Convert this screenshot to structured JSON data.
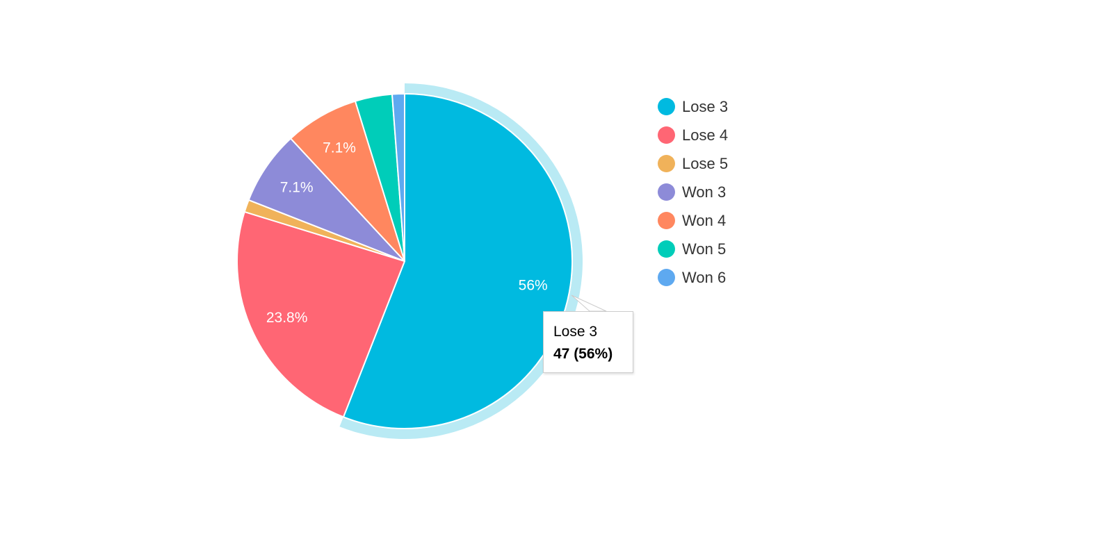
{
  "chart_data": {
    "type": "pie",
    "categories": [
      "Lose 3",
      "Lose 4",
      "Lose 5",
      "Won 3",
      "Won 4",
      "Won 5",
      "Won 6"
    ],
    "values": [
      47,
      20,
      1,
      6,
      6,
      3,
      1
    ],
    "colors": [
      "#00bae0",
      "#ff6674",
      "#f0b25a",
      "#8d8bd8",
      "#ff875f",
      "#00cdb9",
      "#5ea9f0"
    ],
    "slice_labels": [
      "56%",
      "23.8%",
      "",
      "7.1%",
      "7.1%",
      "",
      ""
    ],
    "legend": {
      "placement": "right",
      "entries": [
        "Lose 3",
        "Lose 4",
        "Lose 5",
        "Won 3",
        "Won 4",
        "Won 5",
        "Won 6"
      ]
    },
    "highlighted": "Lose 3",
    "highlight_color": "#b9eaf4",
    "tooltip": {
      "title": "Lose 3",
      "value": "47 (56%)"
    }
  }
}
